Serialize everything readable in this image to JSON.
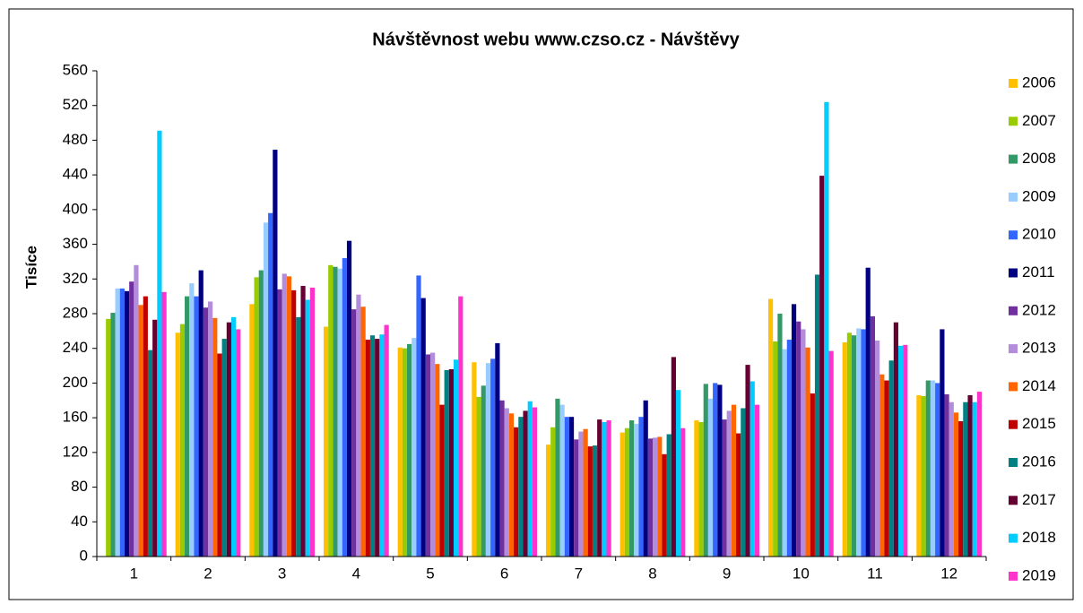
{
  "chart_data": {
    "type": "bar",
    "title": "Návštěvnost webu www.czso.cz - Návštěvy",
    "y_label": "Tisíce",
    "categories": [
      "1",
      "2",
      "3",
      "4",
      "5",
      "6",
      "7",
      "8",
      "9",
      "10",
      "11",
      "12"
    ],
    "ylim": [
      0,
      560
    ],
    "yticks": [
      0,
      40,
      80,
      120,
      160,
      200,
      240,
      280,
      320,
      360,
      400,
      440,
      480,
      520,
      560
    ],
    "legend": "right",
    "series": [
      {
        "name": "2006",
        "color": "#FFC000",
        "values": [
          null,
          258,
          291,
          265,
          241,
          224,
          129,
          143,
          157,
          297,
          247,
          186
        ]
      },
      {
        "name": "2007",
        "color": "#99CC00",
        "values": [
          274,
          268,
          322,
          336,
          240,
          184,
          149,
          148,
          155,
          248,
          258,
          185
        ]
      },
      {
        "name": "2008",
        "color": "#339966",
        "values": [
          281,
          300,
          330,
          334,
          245,
          197,
          182,
          157,
          199,
          280,
          255,
          203
        ]
      },
      {
        "name": "2009",
        "color": "#99CCFF",
        "values": [
          309,
          315,
          385,
          332,
          252,
          223,
          175,
          153,
          182,
          239,
          263,
          203
        ]
      },
      {
        "name": "2010",
        "color": "#3366FF",
        "values": [
          309,
          300,
          396,
          344,
          324,
          228,
          161,
          161,
          200,
          250,
          262,
          200
        ]
      },
      {
        "name": "2011",
        "color": "#000080",
        "values": [
          306,
          330,
          469,
          364,
          298,
          246,
          161,
          180,
          198,
          291,
          333,
          262
        ]
      },
      {
        "name": "2012",
        "color": "#7030A0",
        "values": [
          317,
          287,
          308,
          285,
          233,
          180,
          135,
          136,
          158,
          271,
          277,
          187
        ]
      },
      {
        "name": "2013",
        "color": "#B48CDC",
        "values": [
          336,
          294,
          326,
          302,
          235,
          171,
          144,
          137,
          168,
          262,
          249,
          178
        ]
      },
      {
        "name": "2014",
        "color": "#FF6600",
        "values": [
          290,
          275,
          323,
          288,
          222,
          165,
          147,
          138,
          175,
          241,
          210,
          166
        ]
      },
      {
        "name": "2015",
        "color": "#C00000",
        "values": [
          300,
          234,
          307,
          250,
          175,
          149,
          127,
          118,
          142,
          188,
          203,
          156
        ]
      },
      {
        "name": "2016",
        "color": "#008080",
        "values": [
          238,
          251,
          276,
          255,
          215,
          161,
          128,
          141,
          171,
          325,
          226,
          178
        ]
      },
      {
        "name": "2017",
        "color": "#660033",
        "values": [
          273,
          270,
          312,
          251,
          216,
          168,
          158,
          230,
          221,
          439,
          270,
          186
        ]
      },
      {
        "name": "2018",
        "color": "#00CCFF",
        "values": [
          491,
          276,
          296,
          256,
          227,
          179,
          155,
          192,
          202,
          524,
          243,
          178
        ]
      },
      {
        "name": "2019",
        "color": "#FF33CC",
        "values": [
          305,
          262,
          310,
          267,
          300,
          172,
          157,
          148,
          175,
          237,
          244,
          190
        ]
      }
    ]
  }
}
